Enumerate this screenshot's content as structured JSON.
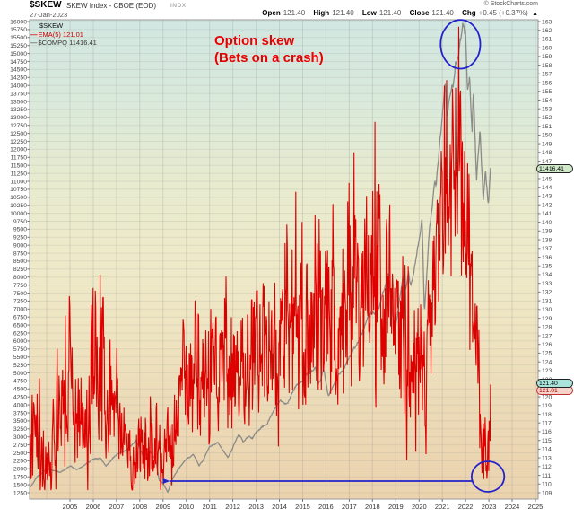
{
  "header": {
    "symbol": "$SKEW",
    "title": "SKEW Index - CBOE (EOD)",
    "exchange": "INDX",
    "date": "27-Jan-2023",
    "copyright": "© StockCharts.com",
    "quote": {
      "open_label": "Open",
      "open_value": "121.40",
      "high_label": "High",
      "high_value": "121.40",
      "low_label": "Low",
      "low_value": "121.40",
      "close_label": "Close",
      "close_value": "121.40",
      "chg_label": "Chg",
      "chg_value": "+0.45 (+0.37%)",
      "chg_arrow": "▲"
    }
  },
  "legend": {
    "symbol_label": "$SKEW",
    "ema_dash": "—",
    "ema_label": "EMA(5) 121.01",
    "compq_dash": "—",
    "compq_label": "$COMPQ 11416.41"
  },
  "annotation": {
    "line1": "Option skew",
    "line2": "(Bets on a crash)"
  },
  "axis_value_labels": {
    "compq_last": "11416.41",
    "skew_close": "121.40",
    "skew_ema": "121.01"
  },
  "chart_data": {
    "type": "line",
    "title": "$SKEW SKEW Index - CBOE (EOD) INDX",
    "date": "27-Jan-2023",
    "x_domain": [
      2003.3,
      2023.07
    ],
    "x_tick_years": [
      2005,
      2006,
      2007,
      2008,
      2009,
      2010,
      2011,
      2012,
      2013,
      2014,
      2015,
      2016,
      2017,
      2018,
      2019,
      2020,
      2021,
      2022,
      2023,
      2024,
      2025
    ],
    "grid_year_start": 2004,
    "grid_year_end": 2025,
    "right_axis": {
      "series": "$SKEW",
      "min": 109,
      "max": 163,
      "step": 1
    },
    "left_axis": {
      "series": "$COMPQ",
      "min": 1250,
      "max": 16000,
      "step": 250
    },
    "background_gradient": [
      "#d2e7e2",
      "#d9e9da",
      "#e7ebcf",
      "#eeeac9",
      "#eee3c0",
      "#ecd9b6",
      "#ebd3ae"
    ],
    "samples_per_year": 52,
    "seed": 91,
    "series": [
      {
        "name": "$SKEW EMA(5)",
        "axis": "right",
        "color": "#dd0000",
        "width": 1.1,
        "last_value": 121.4,
        "anchors_mean_amp": [
          [
            2003.3,
            118,
            6
          ],
          [
            2003.9,
            114,
            5
          ],
          [
            2004.15,
            112.5,
            4
          ],
          [
            2004.5,
            119,
            7
          ],
          [
            2004.9,
            122,
            8
          ],
          [
            2005.4,
            119,
            7
          ],
          [
            2005.9,
            120,
            7
          ],
          [
            2006.35,
            123,
            9
          ],
          [
            2006.8,
            121,
            7
          ],
          [
            2007.25,
            115,
            5
          ],
          [
            2007.7,
            112.5,
            3.5
          ],
          [
            2008.2,
            116,
            5
          ],
          [
            2008.8,
            113,
            3.5
          ],
          [
            2009.25,
            114.5,
            4
          ],
          [
            2009.9,
            122,
            6
          ],
          [
            2010.5,
            121.5,
            6.5
          ],
          [
            2011.1,
            123,
            7
          ],
          [
            2011.7,
            124,
            7
          ],
          [
            2012.4,
            124,
            8
          ],
          [
            2013.1,
            126,
            8
          ],
          [
            2013.8,
            127,
            8.5
          ],
          [
            2014.5,
            128,
            9
          ],
          [
            2015.2,
            127,
            9
          ],
          [
            2016.0,
            128,
            10
          ],
          [
            2016.8,
            131,
            10
          ],
          [
            2017.4,
            134,
            10
          ],
          [
            2018.05,
            136,
            11
          ],
          [
            2018.5,
            131,
            10
          ],
          [
            2019.1,
            126,
            9
          ],
          [
            2019.6,
            124,
            8
          ],
          [
            2020.05,
            126,
            8
          ],
          [
            2020.3,
            122,
            7
          ],
          [
            2020.75,
            136,
            10
          ],
          [
            2021.15,
            143,
            10
          ],
          [
            2021.55,
            148,
            11
          ],
          [
            2021.8,
            149,
            12
          ],
          [
            2022.1,
            136,
            9
          ],
          [
            2022.4,
            127,
            7
          ],
          [
            2022.65,
            121,
            6
          ],
          [
            2022.88,
            114,
            3.5
          ],
          [
            2023.07,
            114,
            3
          ]
        ],
        "forced_points": [
          [
            2006.3,
            134
          ],
          [
            2014.7,
            143.5
          ],
          [
            2017.2,
            148
          ],
          [
            2018.1,
            151.5
          ],
          [
            2021.66,
            146
          ],
          [
            2021.7,
            162.4
          ],
          [
            2021.74,
            147
          ],
          [
            2022.92,
            110.6
          ],
          [
            2023.0,
            111.5
          ],
          [
            2023.07,
            121.4
          ]
        ]
      },
      {
        "name": "$COMPQ",
        "axis": "left",
        "color": "#8b8b88",
        "width": 1.3,
        "last_value": 11416.41,
        "anchors": [
          [
            2003.3,
            1430
          ],
          [
            2003.6,
            1750
          ],
          [
            2004.0,
            2005
          ],
          [
            2004.3,
            1950
          ],
          [
            2004.6,
            1880
          ],
          [
            2005.0,
            2090
          ],
          [
            2005.3,
            1970
          ],
          [
            2005.7,
            2150
          ],
          [
            2006.0,
            2290
          ],
          [
            2006.3,
            2340
          ],
          [
            2006.55,
            2090
          ],
          [
            2007.0,
            2450
          ],
          [
            2007.4,
            2580
          ],
          [
            2007.82,
            2860
          ],
          [
            2008.0,
            2650
          ],
          [
            2008.2,
            2280
          ],
          [
            2008.45,
            2550
          ],
          [
            2008.7,
            2250
          ],
          [
            2008.83,
            1650
          ],
          [
            2009.0,
            1550
          ],
          [
            2009.2,
            1270
          ],
          [
            2009.45,
            1750
          ],
          [
            2009.75,
            2090
          ],
          [
            2010.0,
            2300
          ],
          [
            2010.3,
            2450
          ],
          [
            2010.55,
            2100
          ],
          [
            2010.7,
            2250
          ],
          [
            2011.0,
            2690
          ],
          [
            2011.35,
            2830
          ],
          [
            2011.6,
            2550
          ],
          [
            2011.78,
            2340
          ],
          [
            2012.0,
            2670
          ],
          [
            2012.25,
            3090
          ],
          [
            2012.45,
            2840
          ],
          [
            2012.7,
            3050
          ],
          [
            2012.85,
            2950
          ],
          [
            2013.0,
            3150
          ],
          [
            2013.5,
            3450
          ],
          [
            2014.0,
            4150
          ],
          [
            2014.3,
            4000
          ],
          [
            2014.7,
            4580
          ],
          [
            2015.0,
            4730
          ],
          [
            2015.2,
            5000
          ],
          [
            2015.55,
            5150
          ],
          [
            2015.68,
            4640
          ],
          [
            2015.9,
            5100
          ],
          [
            2016.1,
            4270
          ],
          [
            2016.5,
            4870
          ],
          [
            2016.85,
            5250
          ],
          [
            2017.0,
            5480
          ],
          [
            2017.5,
            6150
          ],
          [
            2017.9,
            6900
          ],
          [
            2018.1,
            6870
          ],
          [
            2018.3,
            7100
          ],
          [
            2018.67,
            8100
          ],
          [
            2018.8,
            7300
          ],
          [
            2018.96,
            6330
          ],
          [
            2019.3,
            7950
          ],
          [
            2019.42,
            7550
          ],
          [
            2019.55,
            8150
          ],
          [
            2019.65,
            7700
          ],
          [
            2020.0,
            9150
          ],
          [
            2020.13,
            9820
          ],
          [
            2020.23,
            6860
          ],
          [
            2020.45,
            9500
          ],
          [
            2020.68,
            11050
          ],
          [
            2020.73,
            10900
          ],
          [
            2020.85,
            11900
          ],
          [
            2021.0,
            13100
          ],
          [
            2021.12,
            14100
          ],
          [
            2021.2,
            13000
          ],
          [
            2021.32,
            13750
          ],
          [
            2021.45,
            14000
          ],
          [
            2021.55,
            14650
          ],
          [
            2021.7,
            15050
          ],
          [
            2021.87,
            15850
          ],
          [
            2022.0,
            15650
          ],
          [
            2022.08,
            13800
          ],
          [
            2022.17,
            14220
          ],
          [
            2022.28,
            12600
          ],
          [
            2022.33,
            13900
          ],
          [
            2022.47,
            11050
          ],
          [
            2022.62,
            12680
          ],
          [
            2022.76,
            10320
          ],
          [
            2022.85,
            11300
          ],
          [
            2022.98,
            10210
          ],
          [
            2023.07,
            11416.41
          ]
        ]
      }
    ],
    "shapes": {
      "color": "#2222cc",
      "ellipses": [
        {
          "t": 2021.78,
          "skew": 160.4,
          "rt": 0.85,
          "rskew": 2.8
        },
        {
          "t": 2022.96,
          "skew": 110.85,
          "rt": 0.7,
          "rskew": 1.75
        }
      ],
      "arrow": {
        "from_t": 2022.27,
        "to_t": 2009.28,
        "skew": 110.34
      }
    }
  }
}
